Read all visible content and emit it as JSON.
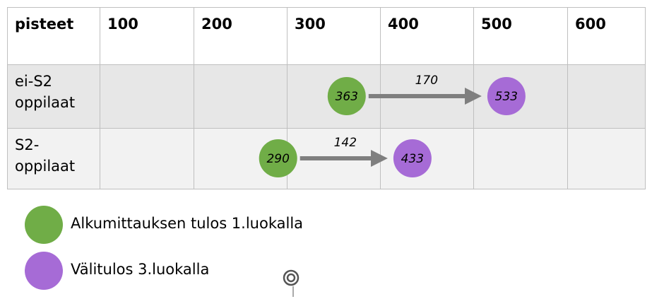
{
  "table": {
    "header": [
      "pisteet",
      "100",
      "200",
      "300",
      "400",
      "500",
      "600"
    ],
    "rows": [
      {
        "label": "ei-S2\noppilaat",
        "start": 363,
        "end": 533,
        "gain": 170
      },
      {
        "label": "S2-\noppilaat",
        "start": 290,
        "end": 433,
        "gain": 142
      }
    ]
  },
  "legend": [
    {
      "label": "Alkumittauksen tulos 1.luokalla",
      "color": "#70ad47"
    },
    {
      "label": "Välitulos 3.luokalla",
      "color": "#a66bd6"
    }
  ]
}
